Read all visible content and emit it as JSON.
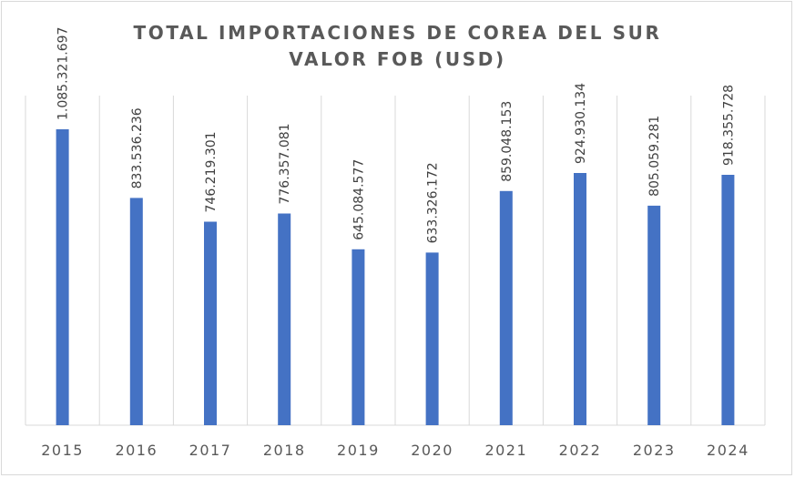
{
  "chart_data": {
    "type": "bar",
    "title": "TOTAL IMPORTACIONES DE COREA DEL SUR",
    "subtitle": "VALOR FOB (USD)",
    "xlabel": "",
    "ylabel": "",
    "categories": [
      "2015",
      "2016",
      "2017",
      "2018",
      "2019",
      "2020",
      "2021",
      "2022",
      "2023",
      "2024"
    ],
    "values": [
      1085321697,
      833536236,
      746219301,
      776357081,
      645084577,
      633326172,
      859048153,
      924930134,
      805059281,
      918355728
    ],
    "data_labels": [
      "1.085.321.697",
      "833.536.236",
      "746.219.301",
      "776.357.081",
      "645.084.577",
      "633.326.172",
      "859.048.153",
      "924.930.134",
      "805.059.281",
      "918.355.728"
    ],
    "ylim": [
      0,
      1100000000
    ],
    "grid": "vertical category separators",
    "legend": "none",
    "bar_color": "#4472c4",
    "gridline_color": "#d9d9d9",
    "text_color": "#595959"
  }
}
